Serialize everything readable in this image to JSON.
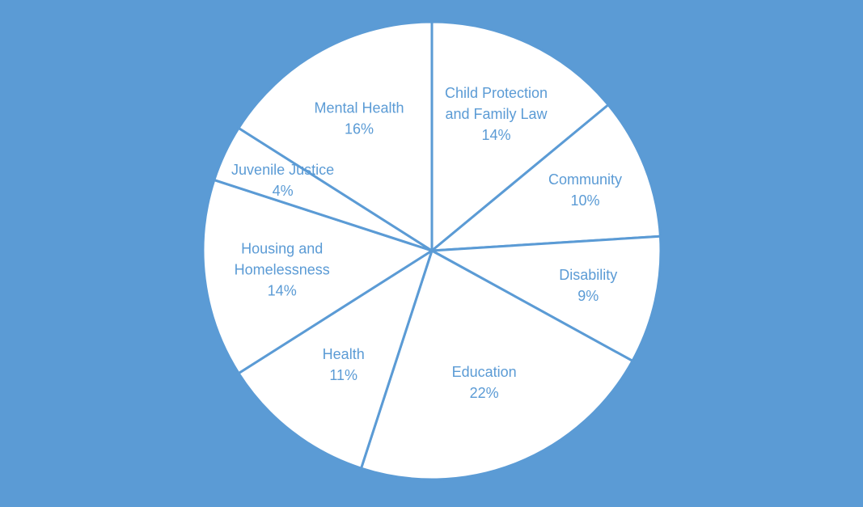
{
  "chart_data": {
    "type": "pie",
    "categories": [
      "Child Protection and Family Law",
      "Community",
      "Disability",
      "Education",
      "Health",
      "Housing and Homelessness",
      "Juvenile Justice",
      "Mental Health"
    ],
    "values": [
      14,
      10,
      9,
      22,
      11,
      14,
      4,
      16
    ],
    "data_labels": [
      "14%",
      "10%",
      "9%",
      "22%",
      "11%",
      "14%",
      "4%",
      "16%"
    ],
    "label_lines": [
      [
        "Child Protection",
        "and Family Law"
      ],
      [
        "Community"
      ],
      [
        "Disability"
      ],
      [
        "Education"
      ],
      [
        "Health"
      ],
      [
        "Housing and",
        "Homelessness"
      ],
      [
        "Juvenile Justice"
      ],
      [
        "Mental Health"
      ]
    ],
    "start": "12 o'clock",
    "direction": "clockwise",
    "labels_inside": true,
    "legend": "none",
    "colors": {
      "background": "#5b9bd5",
      "slice_fill": "#ffffff",
      "slice_border": "#5b9bd5",
      "label_text": "#5b9bd5"
    }
  }
}
